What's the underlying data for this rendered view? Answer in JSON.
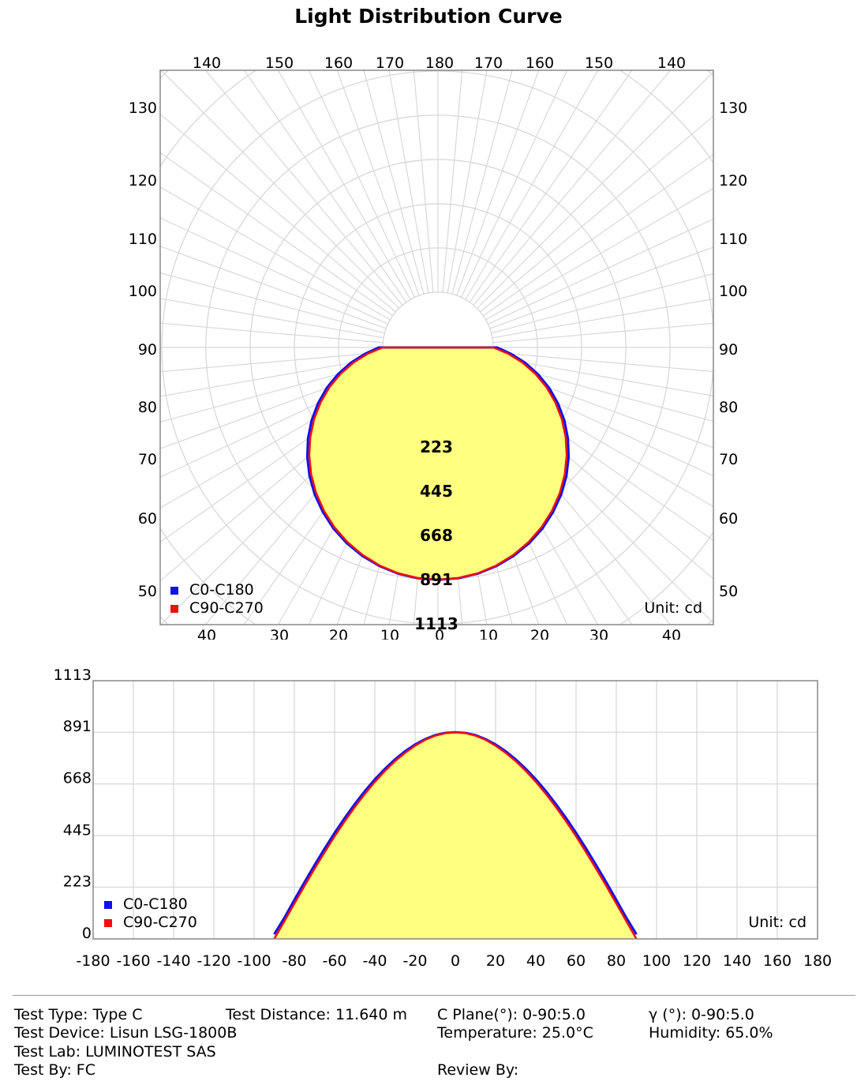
{
  "title": "Light Distribution Curve",
  "colors": {
    "c0": "#1010ee",
    "c90": "#ee1010",
    "fill": "#ffff80",
    "grid": "#d8d8d8"
  },
  "chart_data": [
    {
      "type": "polar",
      "legend": [
        "C0-C180",
        "C90-C270"
      ],
      "unit_label": "Unit: cd",
      "radial_max": 1113,
      "radial_labels": [
        "223",
        "445",
        "668",
        "891",
        "1113"
      ],
      "radial_values": [
        223,
        445,
        668,
        891,
        1113
      ],
      "top_tick_labels": [
        "140",
        "150",
        "160",
        "170",
        "180",
        "170",
        "160",
        "150",
        "140"
      ],
      "bottom_tick_labels": [
        "40",
        "30",
        "20",
        "10",
        "0",
        "10",
        "20",
        "30",
        "40"
      ],
      "side_tick_labels": [
        "130",
        "120",
        "110",
        "100",
        "90",
        "80",
        "70",
        "60",
        "50"
      ],
      "angles": [
        0,
        5,
        10,
        15,
        20,
        25,
        30,
        35,
        40,
        45,
        50,
        55,
        60,
        65,
        70,
        75,
        80,
        85,
        90
      ],
      "series": [
        {
          "name": "C0-C180",
          "values": [
            891,
            888,
            878,
            861,
            838,
            809,
            774,
            733,
            688,
            637,
            581,
            521,
            457,
            389,
            318,
            244,
            168,
            91,
            20
          ]
        },
        {
          "name": "C90-C270",
          "values": [
            891,
            887,
            876,
            858,
            833,
            802,
            766,
            724,
            677,
            625,
            568,
            507,
            442,
            373,
            302,
            228,
            152,
            76,
            0
          ]
        }
      ]
    },
    {
      "type": "line",
      "legend": [
        "C0-C180",
        "C90-C270"
      ],
      "unit_label": "Unit: cd",
      "xlim": [
        -180,
        180
      ],
      "ylim": [
        0,
        1113
      ],
      "x_tick_labels": [
        "-180",
        "-160",
        "-140",
        "-120",
        "-100",
        "-80",
        "-60",
        "-40",
        "-20",
        "0",
        "20",
        "40",
        "60",
        "80",
        "100",
        "120",
        "140",
        "160",
        "180"
      ],
      "y_tick_labels": [
        "0",
        "223",
        "445",
        "668",
        "891",
        "1113"
      ],
      "y_tick_values": [
        0,
        223,
        445,
        668,
        891,
        1113
      ]
    }
  ],
  "info": {
    "test_type": "Test Type: Type C",
    "test_distance": "Test Distance: 11.640 m",
    "c_plane": "C Plane(°):  0-90:5.0",
    "gamma": "γ (°):  0-90:5.0",
    "test_device": "Test Device: Lisun LSG-1800B",
    "temperature": "Temperature:  25.0°C",
    "humidity": "Humidity:  65.0%",
    "test_lab": "Test Lab: LUMINOTEST SAS",
    "test_by": "Test By: FC",
    "review_by": "Review By:"
  }
}
